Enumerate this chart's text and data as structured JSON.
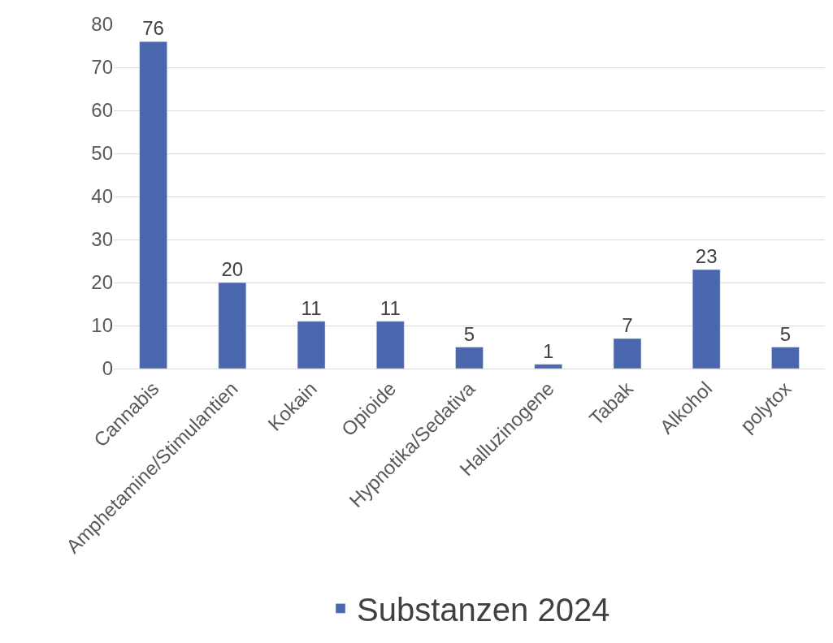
{
  "chart_data": {
    "type": "bar",
    "categories": [
      "Cannabis",
      "Amphetamine/Stimulantien",
      "Kokain",
      "Opioide",
      "Hypnotika/Sedativa",
      "Halluzinogene",
      "Tabak",
      "Alkohol",
      "polytox"
    ],
    "series": [
      {
        "name": "Substanzen 2024",
        "color": "#4a66ac",
        "values": [
          76,
          20,
          11,
          11,
          5,
          1,
          7,
          23,
          5
        ]
      }
    ],
    "ylim": [
      0,
      80
    ],
    "yticks": [
      0,
      10,
      20,
      30,
      40,
      50,
      60,
      70,
      80
    ],
    "grid": "y",
    "legend": "bottom",
    "data_labels": true
  }
}
